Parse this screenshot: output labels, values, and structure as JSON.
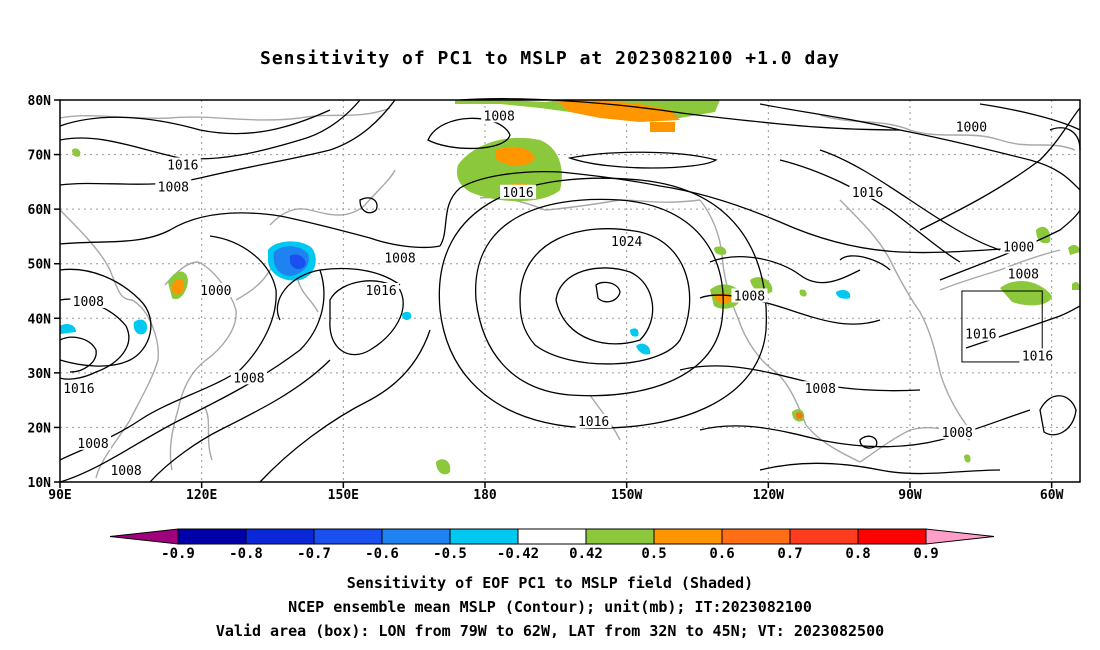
{
  "title": "Sensitivity of PC1 to MSLP at 2023082100 +1.0 day",
  "axes": {
    "lat_ticks": [
      "80N",
      "70N",
      "60N",
      "50N",
      "40N",
      "30N",
      "20N",
      "10N"
    ],
    "lon_ticks": [
      "90E",
      "120E",
      "150E",
      "180",
      "150W",
      "120W",
      "90W",
      "60W"
    ]
  },
  "contour_labels": [
    {
      "text": "1008",
      "lon": 183,
      "lat": 77
    },
    {
      "text": "1000",
      "lon": 283,
      "lat": 75
    },
    {
      "text": "1016",
      "lon": 116,
      "lat": 68
    },
    {
      "text": "1008",
      "lon": 114,
      "lat": 64
    },
    {
      "text": "1016",
      "lon": 187,
      "lat": 63
    },
    {
      "text": "1016",
      "lon": 261,
      "lat": 63
    },
    {
      "text": "1024",
      "lon": 210,
      "lat": 54
    },
    {
      "text": "1008",
      "lon": 162,
      "lat": 51
    },
    {
      "text": "1000",
      "lon": 293,
      "lat": 53
    },
    {
      "text": "1008",
      "lon": 294,
      "lat": 48
    },
    {
      "text": "1016",
      "lon": 158,
      "lat": 45
    },
    {
      "text": "1000",
      "lon": 123,
      "lat": 45
    },
    {
      "text": "1008",
      "lon": 236,
      "lat": 44
    },
    {
      "text": "1008",
      "lon": 96,
      "lat": 43
    },
    {
      "text": "1016",
      "lon": 285,
      "lat": 37
    },
    {
      "text": "1016",
      "lon": 297,
      "lat": 33
    },
    {
      "text": "1016",
      "lon": 94,
      "lat": 27
    },
    {
      "text": "1008",
      "lon": 130,
      "lat": 29
    },
    {
      "text": "1008",
      "lon": 251,
      "lat": 27
    },
    {
      "text": "1016",
      "lon": 203,
      "lat": 21
    },
    {
      "text": "1008",
      "lon": 280,
      "lat": 19
    },
    {
      "text": "1008",
      "lon": 97,
      "lat": 17
    },
    {
      "text": "1008",
      "lon": 104,
      "lat": 12
    }
  ],
  "valid_box": {
    "lon_from": 281,
    "lon_to": 298,
    "lat_from": 32,
    "lat_to": 45
  },
  "colorbar": {
    "colors": [
      "#a0007c",
      "#0000a8",
      "#0a28d8",
      "#1a50f0",
      "#1e82f0",
      "#00c8f0",
      "#ffffff",
      "#8cc83c",
      "#ff9600",
      "#ff6e14",
      "#ff3c1e",
      "#ff0000",
      "#ff9ec8"
    ],
    "labels": [
      "-0.9",
      "-0.8",
      "-0.7",
      "-0.6",
      "-0.5",
      "-0.42",
      "0.42",
      "0.5",
      "0.6",
      "0.7",
      "0.8",
      "0.9"
    ]
  },
  "captions": {
    "line1": "Sensitivity of EOF PC1 to MSLP field (Shaded)",
    "line2": "NCEP ensemble mean MSLP (Contour); unit(mb); IT:2023082100",
    "line3": "Valid area (box): LON from 79W to 62W, LAT from 32N to 45N; VT: 2023082500"
  }
}
